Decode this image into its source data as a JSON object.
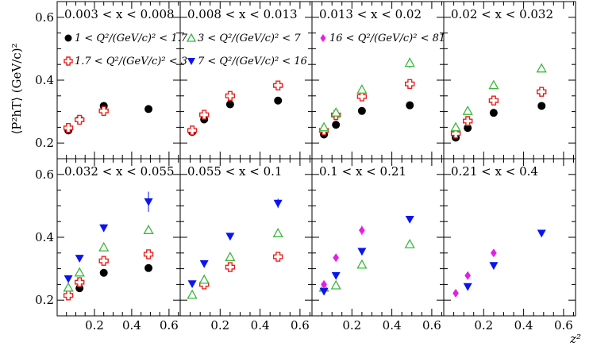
{
  "chart_data": {
    "type": "scatter",
    "ylabel": "⟨P²hT⟩ (GeV/c)²",
    "xlabel": "z²",
    "xlim": [
      0,
      0.66
    ],
    "ylim": [
      0.15,
      0.65
    ],
    "xticks": [
      0.2,
      0.4,
      0.6
    ],
    "xtick_labels": [
      "0.2",
      "0.4",
      "0.6"
    ],
    "yticks": [
      0.2,
      0.4,
      0.6
    ],
    "ytick_labels": [
      "0.2",
      "0.4",
      "0.6"
    ],
    "series_styles": [
      {
        "name": "1 < Q²/(GeV/c)² < 1.7",
        "label": "1 < Q²/(GeV/c)² < 1.7",
        "marker": "circle",
        "color": "#000000"
      },
      {
        "name": "1.7 < Q²/(GeV/c)² < 3",
        "label": "1.7 < Q²/(GeV/c)² < 3",
        "marker": "cross",
        "color": "#e8211c"
      },
      {
        "name": "3 < Q²/(GeV/c)² < 7",
        "label": "3 < Q²/(GeV/c)² < 7",
        "marker": "triangle-up",
        "color": "#3cb83c"
      },
      {
        "name": "7 < Q²/(GeV/c)² < 16",
        "label": "7 < Q²/(GeV/c)² < 16",
        "marker": "triangle-down",
        "color": "#0a14f0"
      },
      {
        "name": "16 < Q²/(GeV/c)² < 81",
        "label": "16 < Q²/(GeV/c)² < 81",
        "marker": "diamond",
        "color": "#e81ce8"
      }
    ],
    "panels": [
      {
        "title": "0.003 < x < 0.008",
        "legend": [
          0,
          1
        ],
        "series": [
          {
            "style": 0,
            "points": [
              {
                "x": 0.06,
                "y": 0.24
              },
              {
                "x": 0.12,
                "y": 0.275
              },
              {
                "x": 0.25,
                "y": 0.318
              },
              {
                "x": 0.49,
                "y": 0.308
              }
            ]
          },
          {
            "style": 1,
            "points": [
              {
                "x": 0.06,
                "y": 0.248
              },
              {
                "x": 0.12,
                "y": 0.274
              },
              {
                "x": 0.25,
                "y": 0.302
              }
            ]
          }
        ]
      },
      {
        "title": "0.008 < x < 0.013",
        "legend": [
          2,
          3
        ],
        "series": [
          {
            "style": 0,
            "points": [
              {
                "x": 0.06,
                "y": 0.235
              },
              {
                "x": 0.12,
                "y": 0.275
              },
              {
                "x": 0.25,
                "y": 0.323
              },
              {
                "x": 0.49,
                "y": 0.335
              }
            ]
          },
          {
            "style": 1,
            "points": [
              {
                "x": 0.06,
                "y": 0.24
              },
              {
                "x": 0.12,
                "y": 0.29
              },
              {
                "x": 0.25,
                "y": 0.35
              },
              {
                "x": 0.49,
                "y": 0.383
              }
            ]
          }
        ]
      },
      {
        "title": "0.013 < x < 0.02",
        "legend": [
          4
        ],
        "series": [
          {
            "style": 0,
            "points": [
              {
                "x": 0.06,
                "y": 0.227
              },
              {
                "x": 0.12,
                "y": 0.258
              },
              {
                "x": 0.25,
                "y": 0.302
              },
              {
                "x": 0.49,
                "y": 0.32
              }
            ]
          },
          {
            "style": 1,
            "points": [
              {
                "x": 0.06,
                "y": 0.24
              },
              {
                "x": 0.12,
                "y": 0.289
              },
              {
                "x": 0.25,
                "y": 0.348
              },
              {
                "x": 0.49,
                "y": 0.388
              }
            ]
          },
          {
            "style": 2,
            "points": [
              {
                "x": 0.06,
                "y": 0.25
              },
              {
                "x": 0.12,
                "y": 0.297
              },
              {
                "x": 0.25,
                "y": 0.37
              },
              {
                "x": 0.49,
                "y": 0.455,
                "err": 0.017
              }
            ]
          }
        ]
      },
      {
        "title": "0.02 < x < 0.032",
        "legend": [],
        "series": [
          {
            "style": 0,
            "points": [
              {
                "x": 0.06,
                "y": 0.217
              },
              {
                "x": 0.12,
                "y": 0.248
              },
              {
                "x": 0.25,
                "y": 0.296
              },
              {
                "x": 0.49,
                "y": 0.318
              }
            ]
          },
          {
            "style": 1,
            "points": [
              {
                "x": 0.06,
                "y": 0.23
              },
              {
                "x": 0.12,
                "y": 0.27
              },
              {
                "x": 0.25,
                "y": 0.335
              },
              {
                "x": 0.49,
                "y": 0.363
              }
            ]
          },
          {
            "style": 2,
            "points": [
              {
                "x": 0.06,
                "y": 0.25
              },
              {
                "x": 0.12,
                "y": 0.302
              },
              {
                "x": 0.25,
                "y": 0.384
              },
              {
                "x": 0.49,
                "y": 0.437,
                "err": 0.012
              }
            ]
          }
        ]
      },
      {
        "title": "0.032 < x < 0.055",
        "legend": [],
        "series": [
          {
            "style": 0,
            "points": [
              {
                "x": 0.12,
                "y": 0.238
              },
              {
                "x": 0.25,
                "y": 0.287
              },
              {
                "x": 0.49,
                "y": 0.302
              }
            ]
          },
          {
            "style": 1,
            "points": [
              {
                "x": 0.06,
                "y": 0.215
              },
              {
                "x": 0.12,
                "y": 0.257
              },
              {
                "x": 0.25,
                "y": 0.325
              },
              {
                "x": 0.49,
                "y": 0.346
              }
            ]
          },
          {
            "style": 2,
            "points": [
              {
                "x": 0.06,
                "y": 0.24
              },
              {
                "x": 0.12,
                "y": 0.288
              },
              {
                "x": 0.25,
                "y": 0.368
              },
              {
                "x": 0.49,
                "y": 0.423
              }
            ]
          },
          {
            "style": 3,
            "points": [
              {
                "x": 0.06,
                "y": 0.268
              },
              {
                "x": 0.12,
                "y": 0.333
              },
              {
                "x": 0.25,
                "y": 0.43,
                "err": 0.012
              },
              {
                "x": 0.49,
                "y": 0.513,
                "err": 0.032
              }
            ]
          }
        ]
      },
      {
        "title": "0.055 < x < 0.1",
        "legend": [],
        "series": [
          {
            "style": 1,
            "points": [
              {
                "x": 0.12,
                "y": 0.25
              },
              {
                "x": 0.25,
                "y": 0.305
              },
              {
                "x": 0.49,
                "y": 0.338
              }
            ]
          },
          {
            "style": 2,
            "points": [
              {
                "x": 0.06,
                "y": 0.217
              },
              {
                "x": 0.12,
                "y": 0.265
              },
              {
                "x": 0.25,
                "y": 0.337
              },
              {
                "x": 0.49,
                "y": 0.413
              }
            ]
          },
          {
            "style": 3,
            "points": [
              {
                "x": 0.06,
                "y": 0.252
              },
              {
                "x": 0.12,
                "y": 0.316
              },
              {
                "x": 0.25,
                "y": 0.403
              },
              {
                "x": 0.49,
                "y": 0.508,
                "err": 0.015
              }
            ]
          }
        ]
      },
      {
        "title": "0.1 < x < 0.21",
        "legend": [],
        "series": [
          {
            "style": 2,
            "points": [
              {
                "x": 0.06,
                "y": 0.24
              },
              {
                "x": 0.12,
                "y": 0.247
              },
              {
                "x": 0.25,
                "y": 0.313
              },
              {
                "x": 0.49,
                "y": 0.378
              }
            ]
          },
          {
            "style": 3,
            "points": [
              {
                "x": 0.06,
                "y": 0.228
              },
              {
                "x": 0.12,
                "y": 0.278
              },
              {
                "x": 0.25,
                "y": 0.355
              },
              {
                "x": 0.49,
                "y": 0.457
              }
            ]
          },
          {
            "style": 4,
            "points": [
              {
                "x": 0.06,
                "y": 0.25
              },
              {
                "x": 0.12,
                "y": 0.335
              },
              {
                "x": 0.25,
                "y": 0.422,
                "err": 0.015
              }
            ]
          }
        ]
      },
      {
        "title": "0.21 < x < 0.4",
        "legend": [],
        "series": [
          {
            "style": 3,
            "points": [
              {
                "x": 0.12,
                "y": 0.243
              },
              {
                "x": 0.25,
                "y": 0.31
              },
              {
                "x": 0.49,
                "y": 0.413,
                "err": 0.01
              }
            ]
          },
          {
            "style": 4,
            "points": [
              {
                "x": 0.06,
                "y": 0.222
              },
              {
                "x": 0.12,
                "y": 0.278
              },
              {
                "x": 0.25,
                "y": 0.35
              }
            ]
          }
        ]
      }
    ]
  }
}
